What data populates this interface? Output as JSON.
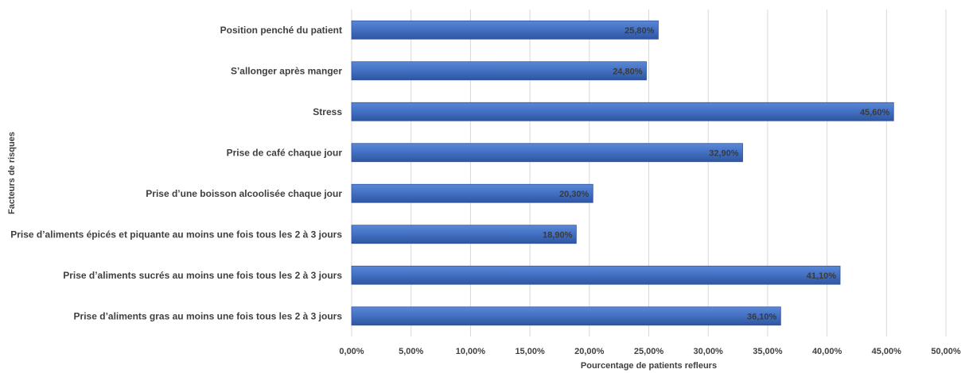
{
  "chart_data": {
    "type": "bar",
    "orientation": "horizontal",
    "categories": [
      "Position penché du patient",
      "S’allonger après manger",
      "Stress",
      "Prise de café chaque jour",
      "Prise d’une boisson alcoolisée chaque jour",
      "Prise d’aliments épicés et piquante au moins une fois tous les 2 à 3 jours",
      "Prise d’aliments sucrés au moins une fois tous les 2 à 3 jours",
      "Prise d’aliments gras au moins une fois tous les 2 à 3 jours"
    ],
    "values": [
      25.8,
      24.8,
      45.6,
      32.9,
      20.3,
      18.9,
      41.1,
      36.1
    ],
    "data_labels": [
      "25,80%",
      "24,80%",
      "45,60%",
      "32,90%",
      "20,30%",
      "18,90%",
      "41,10%",
      "36,10%"
    ],
    "xlim": [
      0,
      50
    ],
    "x_ticks": [
      "0,00%",
      "5,00%",
      "10,00%",
      "15,00%",
      "20,00%",
      "25,00%",
      "30,00%",
      "35,00%",
      "40,00%",
      "45,00%",
      "50,00%"
    ],
    "xlabel": "Pourcentage de patients refleurs",
    "ylabel": "Facteurs de risques",
    "grid": true,
    "bar_color": "#4472c4",
    "bar_color_dark": "#2f55a0"
  }
}
